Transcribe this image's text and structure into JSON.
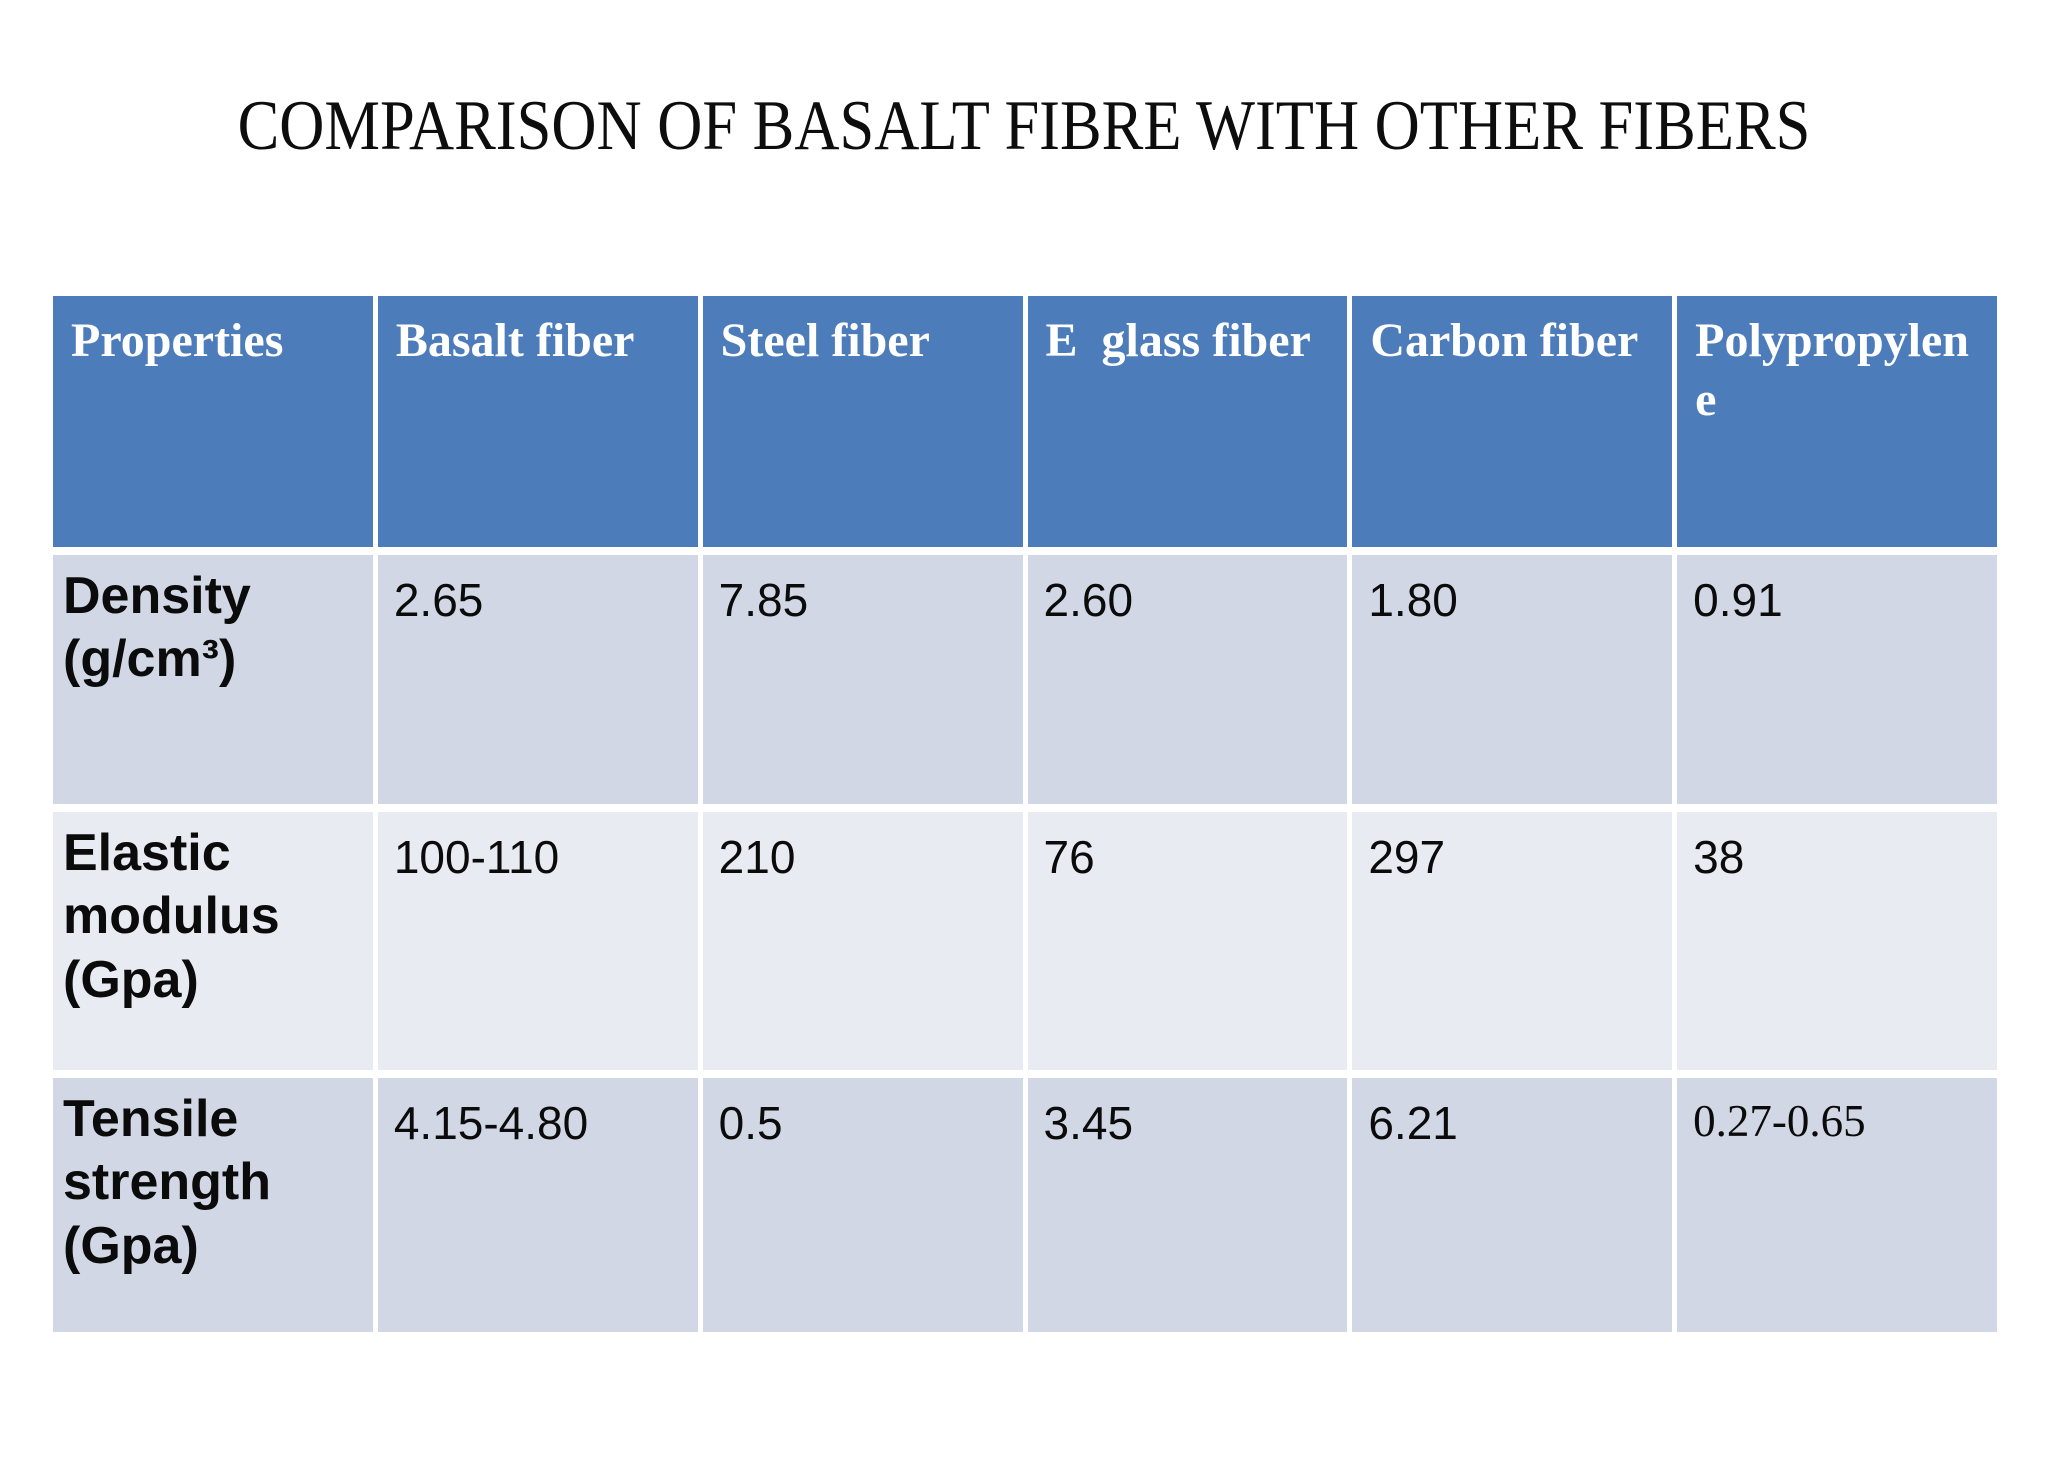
{
  "title": "COMPARISON OF BASALT FIBRE WITH OTHER FIBERS",
  "table": {
    "headers": [
      "Properties",
      "Basalt fiber",
      "Steel fiber",
      "E  glass fiber",
      "Carbon fiber",
      "Polypropylen\ne"
    ],
    "rows": [
      {
        "property": "Density (g/cm³)",
        "values": [
          "2.65",
          "7.85",
          "2.60",
          "1.80",
          "0.91"
        ]
      },
      {
        "property": "Elastic modulus (Gpa)",
        "values": [
          "100-110",
          "210",
          "76",
          "297",
          "38"
        ]
      },
      {
        "property": "Tensile strength (Gpa)",
        "values": [
          "4.15-4.80",
          "0.5",
          "3.45",
          "6.21",
          "0.27-0.65"
        ]
      }
    ]
  },
  "colors": {
    "header_fill": "#4d7cba",
    "row_dark_fill": "#d2d7e5",
    "row_light_fill": "#e9ebf3",
    "header_text": "#ffffff",
    "body_text": "#0b0b0b",
    "background": "#ffffff"
  }
}
